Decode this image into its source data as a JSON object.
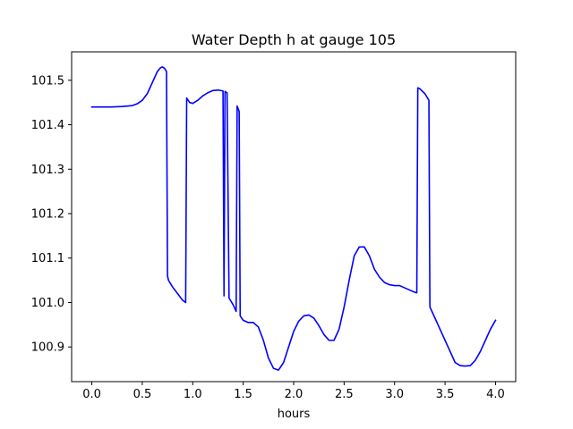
{
  "chart_data": {
    "type": "line",
    "title": "Water Depth h at gauge 105",
    "xlabel": "hours",
    "ylabel": "",
    "xlim": [
      -0.2,
      4.2
    ],
    "ylim": [
      100.822,
      101.564
    ],
    "x_ticks": [
      {
        "value": 0.0,
        "label": "0.0"
      },
      {
        "value": 0.5,
        "label": "0.5"
      },
      {
        "value": 1.0,
        "label": "1.0"
      },
      {
        "value": 1.5,
        "label": "1.5"
      },
      {
        "value": 2.0,
        "label": "2.0"
      },
      {
        "value": 2.5,
        "label": "2.5"
      },
      {
        "value": 3.0,
        "label": "3.0"
      },
      {
        "value": 3.5,
        "label": "3.5"
      },
      {
        "value": 4.0,
        "label": "4.0"
      }
    ],
    "y_ticks": [
      {
        "value": 100.9,
        "label": "100.9"
      },
      {
        "value": 101.0,
        "label": "101.0"
      },
      {
        "value": 101.1,
        "label": "101.1"
      },
      {
        "value": 101.2,
        "label": "101.2"
      },
      {
        "value": 101.3,
        "label": "101.3"
      },
      {
        "value": 101.4,
        "label": "101.4"
      },
      {
        "value": 101.5,
        "label": "101.5"
      }
    ],
    "grid": false,
    "legend": "none",
    "series": [
      {
        "color": "#0000ff",
        "x": [
          0.0,
          0.1,
          0.2,
          0.3,
          0.4,
          0.45,
          0.5,
          0.55,
          0.6,
          0.65,
          0.68,
          0.7,
          0.72,
          0.74,
          0.75,
          0.76,
          0.8,
          0.85,
          0.9,
          0.93,
          0.94,
          0.97,
          1.0,
          1.05,
          1.1,
          1.15,
          1.2,
          1.25,
          1.3,
          1.31,
          1.32,
          1.33,
          1.34,
          1.36,
          1.4,
          1.43,
          1.44,
          1.45,
          1.46,
          1.47,
          1.5,
          1.55,
          1.6,
          1.65,
          1.7,
          1.75,
          1.8,
          1.85,
          1.9,
          1.95,
          2.0,
          2.05,
          2.1,
          2.15,
          2.2,
          2.25,
          2.3,
          2.35,
          2.4,
          2.45,
          2.5,
          2.55,
          2.6,
          2.65,
          2.7,
          2.75,
          2.8,
          2.85,
          2.9,
          2.95,
          3.0,
          3.05,
          3.1,
          3.15,
          3.2,
          3.22,
          3.23,
          3.25,
          3.3,
          3.34,
          3.35,
          3.4,
          3.45,
          3.5,
          3.55,
          3.6,
          3.65,
          3.7,
          3.75,
          3.8,
          3.85,
          3.9,
          3.95,
          4.0
        ],
        "y": [
          101.44,
          101.44,
          101.44,
          101.441,
          101.443,
          101.447,
          101.455,
          101.47,
          101.495,
          101.52,
          101.528,
          101.53,
          101.527,
          101.52,
          101.06,
          101.05,
          101.035,
          101.02,
          101.005,
          101.0,
          101.46,
          101.45,
          101.448,
          101.455,
          101.465,
          101.472,
          101.477,
          101.478,
          101.476,
          101.015,
          101.475,
          101.473,
          101.472,
          101.01,
          100.995,
          100.98,
          101.442,
          101.436,
          101.43,
          100.97,
          100.96,
          100.955,
          100.955,
          100.945,
          100.915,
          100.875,
          100.852,
          100.848,
          100.865,
          100.9,
          100.935,
          100.958,
          100.97,
          100.972,
          100.965,
          100.948,
          100.928,
          100.915,
          100.915,
          100.94,
          100.99,
          101.05,
          101.105,
          101.125,
          101.125,
          101.105,
          101.075,
          101.057,
          101.045,
          101.04,
          101.038,
          101.038,
          101.033,
          101.028,
          101.023,
          101.022,
          101.483,
          101.481,
          101.47,
          101.455,
          100.99,
          100.965,
          100.94,
          100.915,
          100.89,
          100.865,
          100.858,
          100.857,
          100.858,
          100.87,
          100.89,
          100.915,
          100.94,
          100.96
        ]
      }
    ]
  }
}
